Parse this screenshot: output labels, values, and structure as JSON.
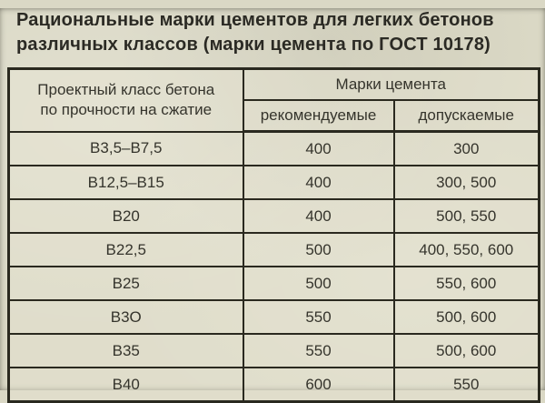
{
  "page": {
    "title_line1": "Рациональные марки цементов для легких бетонов",
    "title_line2": "различных классов (марки цемента по ГОСТ 10178)"
  },
  "table": {
    "header": {
      "class_lines": [
        "Проектный класс бетона",
        "по прочности на сжатие"
      ],
      "group": "Марки цемента",
      "sub": [
        "рекомендуемые",
        "допускаемые"
      ]
    },
    "rows": [
      {
        "class": "В3,5–В7,5",
        "recommended": "400",
        "allowed": "300"
      },
      {
        "class": "В12,5–В15",
        "recommended": "400",
        "allowed": "300, 500"
      },
      {
        "class": "В20",
        "recommended": "400",
        "allowed": "500, 550"
      },
      {
        "class": "В22,5",
        "recommended": "500",
        "allowed": "400, 550, 600"
      },
      {
        "class": "В25",
        "recommended": "500",
        "allowed": "550, 600"
      },
      {
        "class": "В3О",
        "recommended": "550",
        "allowed": "500, 600"
      },
      {
        "class": "В35",
        "recommended": "550",
        "allowed": "500, 600"
      },
      {
        "class": "В40",
        "recommended": "600",
        "allowed": "550"
      }
    ],
    "colors": {
      "paper": "#dad8c5",
      "ink": "#35342c",
      "border": "#2a291f"
    }
  }
}
